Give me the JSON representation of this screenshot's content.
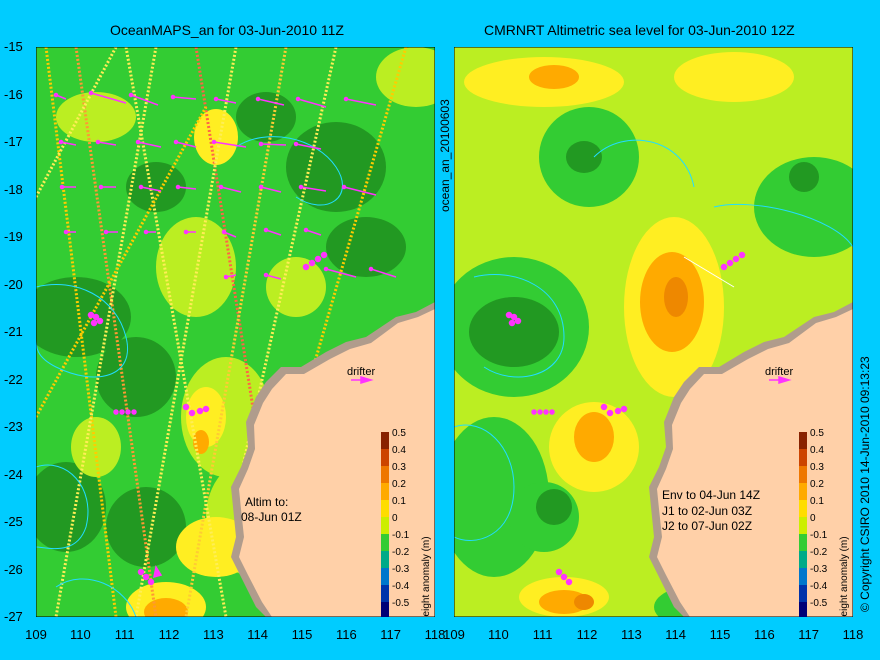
{
  "left_panel": {
    "title": "OceanMAPS_an for 03-Jun-2010 11Z",
    "annotation_line1": "Altim to:",
    "annotation_line2": "08-Jun 01Z",
    "drifter_label": "drifter",
    "colorbar": {
      "label": "height anomaly (m)",
      "ticks": [
        "0.5",
        "0.4",
        "0.3",
        "0.2",
        "0.1",
        "0",
        "-0.1",
        "-0.2",
        "-0.3",
        "-0.4",
        "-0.5"
      ]
    }
  },
  "right_panel": {
    "title": "CMRNRT Altimetric sea level  for 03-Jun-2010 12Z",
    "annotation_line1": "Env to 04-Jun 14Z",
    "annotation_line2": "J1 to 02-Jun 03Z",
    "annotation_line3": "J2 to 07-Jun 02Z",
    "drifter_label": "drifter",
    "colorbar": {
      "label": "height anomaly (m)",
      "ticks": [
        "0.5",
        "0.4",
        "0.3",
        "0.2",
        "0.1",
        "0",
        "-0.1",
        "-0.2",
        "-0.3",
        "-0.4",
        "-0.5"
      ]
    }
  },
  "axes": {
    "y_labels": [
      "-15",
      "-16",
      "-17",
      "-18",
      "-19",
      "-20",
      "-21",
      "-22",
      "-23",
      "-24",
      "-25",
      "-26",
      "-27"
    ],
    "x_labels_left": [
      "109",
      "110",
      "111",
      "112",
      "113",
      "114",
      "115",
      "116",
      "117",
      "118"
    ],
    "x_labels_right": [
      "109",
      "110",
      "111",
      "112",
      "113",
      "114",
      "115",
      "116",
      "117",
      "118"
    ]
  },
  "side_text": {
    "middle": "ocean_an_20100603",
    "right": "© Copyright CSIRO 2010  14-Jun-2010 09:13:23"
  },
  "colors": {
    "background": "#00ccff",
    "land": "#ffd0a8",
    "land_dark": "#b09c8c",
    "green": "#33cc33",
    "dark_green": "#229922",
    "yellow_green": "#bbee22",
    "yellow": "#ffee22",
    "orange": "#ffaa00",
    "magenta": "#ff33ff",
    "contour": "#22ddff"
  }
}
